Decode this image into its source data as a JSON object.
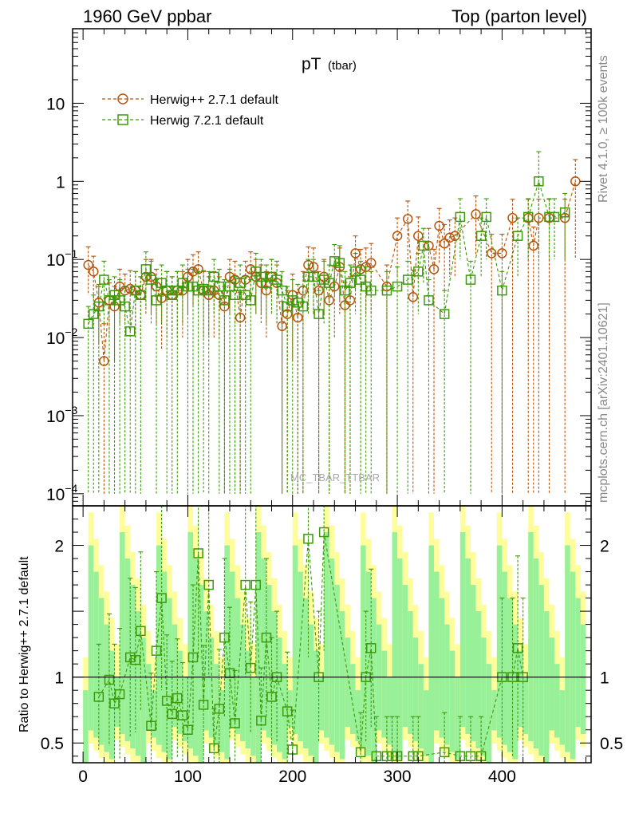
{
  "header": {
    "left": "1960 GeV ppbar",
    "right": "Top (parton level)"
  },
  "side_text": {
    "rivet": "Rivet 4.1.0, ≥ 100k events",
    "mcplots": "mcplots.cern.ch [arXiv:2401.10621]"
  },
  "watermark": "MC_TBAR_TTBAR",
  "colors": {
    "herwig_pp": "#b8530a",
    "herwig_7": "#3c9a0a",
    "band_outer": "#fdfd9c",
    "band_inner": "#98f098"
  },
  "chart_data": [
    {
      "type": "line",
      "title": "pT",
      "title_sub": "(tbar)",
      "yscale": "log",
      "ylim": [
        7e-05,
        90
      ],
      "xlim": [
        -10,
        485
      ],
      "yticks": [
        {
          "value": 0.0001,
          "base": "10",
          "exp": "−4"
        },
        {
          "value": 0.001,
          "base": "10",
          "exp": "−3"
        },
        {
          "value": 0.01,
          "base": "10",
          "exp": "−2"
        },
        {
          "value": 0.1,
          "base": "10",
          "exp": "−1"
        },
        {
          "value": 1,
          "base": "1",
          "exp": ""
        },
        {
          "value": 10,
          "base": "10",
          "exp": ""
        }
      ],
      "legend_position": "top-left",
      "series": [
        {
          "name": "Herwig++ 2.7.1 default",
          "marker": "circle",
          "x": [
            5,
            10,
            15,
            20,
            25,
            30,
            35,
            40,
            45,
            50,
            55,
            60,
            65,
            70,
            75,
            80,
            85,
            90,
            95,
            100,
            105,
            110,
            115,
            120,
            125,
            130,
            135,
            140,
            145,
            150,
            155,
            160,
            165,
            170,
            175,
            180,
            185,
            190,
            195,
            200,
            205,
            210,
            215,
            220,
            225,
            230,
            235,
            240,
            245,
            250,
            255,
            260,
            265,
            270,
            275,
            290,
            300,
            310,
            315,
            320,
            330,
            335,
            340,
            345,
            350,
            355,
            375,
            390,
            400,
            410,
            425,
            430,
            435,
            445,
            460,
            470
          ],
          "y": [
            0.085,
            0.07,
            0.028,
            0.005,
            0.03,
            0.025,
            0.045,
            0.04,
            0.042,
            0.04,
            0.035,
            0.06,
            0.06,
            0.045,
            0.032,
            0.04,
            0.035,
            0.04,
            0.04,
            0.06,
            0.07,
            0.075,
            0.04,
            0.035,
            0.04,
            0.035,
            0.025,
            0.06,
            0.055,
            0.018,
            0.055,
            0.075,
            0.06,
            0.05,
            0.04,
            0.06,
            0.05,
            0.014,
            0.02,
            0.035,
            0.018,
            0.04,
            0.085,
            0.08,
            0.04,
            0.06,
            0.03,
            0.045,
            0.08,
            0.026,
            0.03,
            0.12,
            0.075,
            0.08,
            0.09,
            0.045,
            0.2,
            0.33,
            0.033,
            0.2,
            0.15,
            0.075,
            0.27,
            0.16,
            0.19,
            0.2,
            0.38,
            0.12,
            0.12,
            0.34,
            0.34,
            0.15,
            0.34,
            0.34,
            0.34,
            1.0
          ],
          "err_up": [
            0.06,
            0.04,
            0.02,
            0.01,
            0.02,
            0.02,
            0.03,
            0.025,
            0.03,
            0.03,
            0.025,
            0.04,
            0.04,
            0.03,
            0.025,
            0.03,
            0.025,
            0.03,
            0.03,
            0.04,
            0.045,
            0.05,
            0.03,
            0.025,
            0.03,
            0.025,
            0.02,
            0.04,
            0.04,
            0.02,
            0.04,
            0.05,
            0.04,
            0.035,
            0.03,
            0.04,
            0.035,
            0.015,
            0.02,
            0.03,
            0.02,
            0.03,
            0.06,
            0.06,
            0.03,
            0.04,
            0.03,
            0.035,
            0.06,
            0.025,
            0.03,
            0.08,
            0.06,
            0.06,
            0.07,
            0.04,
            0.14,
            0.23,
            0.04,
            0.15,
            0.1,
            0.06,
            0.18,
            0.12,
            0.13,
            0.14,
            0.27,
            0.09,
            0.09,
            0.25,
            0.25,
            0.11,
            0.25,
            0.25,
            0.25,
            0.9
          ],
          "err_down": [
            0.05,
            0.04,
            0.02,
            0.0049,
            0.02,
            0.02,
            0.03,
            0.025,
            0.03,
            0.03,
            0.025,
            0.04,
            0.04,
            0.03,
            0.025,
            0.03,
            0.025,
            0.03,
            0.03,
            0.04,
            0.045,
            0.05,
            0.03,
            0.025,
            0.03,
            0.025,
            0.0249,
            0.04,
            0.04,
            0.0179,
            0.04,
            0.05,
            0.04,
            0.035,
            0.03,
            0.04,
            0.035,
            0.0139,
            0.0199,
            0.03,
            0.0179,
            0.0399,
            0.06,
            0.06,
            0.0399,
            0.04,
            0.0299,
            0.035,
            0.06,
            0.0259,
            0.0299,
            0.08,
            0.06,
            0.06,
            0.07,
            0.0449,
            0.14,
            0.23,
            0.0329,
            0.15,
            0.1,
            0.0749,
            0.18,
            0.12,
            0.13,
            0.14,
            0.27,
            0.1199,
            0.1199,
            0.3399,
            0.3399,
            0.1499,
            0.3399,
            0.3399,
            0.3399,
            0.9
          ]
        },
        {
          "name": "Herwig 7.2.1 default",
          "marker": "square",
          "x": [
            5,
            10,
            15,
            20,
            25,
            30,
            35,
            40,
            45,
            50,
            55,
            60,
            65,
            70,
            75,
            80,
            85,
            90,
            95,
            100,
            105,
            110,
            115,
            120,
            125,
            130,
            135,
            140,
            145,
            150,
            155,
            160,
            165,
            170,
            175,
            180,
            185,
            190,
            195,
            200,
            205,
            210,
            215,
            220,
            225,
            230,
            235,
            240,
            245,
            250,
            255,
            260,
            265,
            270,
            275,
            290,
            300,
            310,
            320,
            325,
            330,
            345,
            360,
            370,
            380,
            385,
            400,
            415,
            425,
            435,
            445,
            450,
            460
          ],
          "y": [
            0.015,
            0.02,
            0.025,
            0.055,
            0.03,
            0.035,
            0.03,
            0.025,
            0.012,
            0.04,
            0.035,
            0.075,
            0.055,
            0.03,
            0.05,
            0.04,
            0.035,
            0.04,
            0.05,
            0.045,
            0.045,
            0.04,
            0.042,
            0.04,
            0.06,
            0.045,
            0.03,
            0.045,
            0.035,
            0.05,
            0.035,
            0.03,
            0.07,
            0.06,
            0.05,
            0.06,
            0.055,
            0.04,
            0.025,
            0.03,
            0.028,
            0.025,
            0.06,
            0.06,
            0.02,
            0.055,
            0.05,
            0.095,
            0.09,
            0.04,
            0.05,
            0.07,
            0.055,
            0.045,
            0.04,
            0.04,
            0.045,
            0.055,
            0.07,
            0.15,
            0.03,
            0.02,
            0.35,
            0.055,
            0.2,
            0.35,
            0.04,
            0.2,
            0.35,
            1.0,
            0.35,
            0.35,
            0.4
          ],
          "err_up": [
            0.01,
            0.015,
            0.02,
            0.04,
            0.025,
            0.025,
            0.025,
            0.02,
            0.01,
            0.03,
            0.025,
            0.05,
            0.04,
            0.025,
            0.035,
            0.03,
            0.025,
            0.03,
            0.035,
            0.03,
            0.03,
            0.03,
            0.03,
            0.03,
            0.04,
            0.03,
            0.025,
            0.03,
            0.025,
            0.035,
            0.025,
            0.025,
            0.05,
            0.04,
            0.035,
            0.04,
            0.04,
            0.03,
            0.02,
            0.025,
            0.02,
            0.02,
            0.04,
            0.04,
            0.02,
            0.04,
            0.035,
            0.06,
            0.06,
            0.03,
            0.035,
            0.05,
            0.04,
            0.035,
            0.03,
            0.03,
            0.035,
            0.04,
            0.05,
            0.1,
            0.025,
            0.02,
            0.25,
            0.04,
            0.14,
            0.25,
            0.03,
            0.14,
            0.25,
            1.4,
            0.25,
            0.25,
            0.3
          ],
          "err_down": [
            0.0149,
            0.0199,
            0.0249,
            0.04,
            0.0299,
            0.0349,
            0.0299,
            0.0249,
            0.0119,
            0.0399,
            0.0349,
            0.05,
            0.04,
            0.0299,
            0.035,
            0.0399,
            0.0349,
            0.0399,
            0.035,
            0.0449,
            0.0449,
            0.0399,
            0.0419,
            0.0399,
            0.04,
            0.0449,
            0.0299,
            0.0449,
            0.0349,
            0.0499,
            0.0349,
            0.0299,
            0.05,
            0.04,
            0.035,
            0.04,
            0.04,
            0.0399,
            0.0249,
            0.0299,
            0.0279,
            0.0249,
            0.04,
            0.04,
            0.0199,
            0.04,
            0.0499,
            0.06,
            0.06,
            0.0399,
            0.0499,
            0.05,
            0.0549,
            0.0449,
            0.0399,
            0.0399,
            0.0449,
            0.0549,
            0.05,
            0.1,
            0.0299,
            0.0199,
            0.25,
            0.0549,
            0.14,
            0.25,
            0.0399,
            0.14,
            0.25,
            0.9,
            0.25,
            0.25,
            0.3
          ]
        }
      ]
    },
    {
      "type": "line",
      "ylabel": "Ratio to Herwig++ 2.7.1 default",
      "ylim": [
        0.35,
        2.3
      ],
      "xlim": [
        -10,
        485
      ],
      "yticks": [
        {
          "value": 0.5,
          "label": "0.5"
        },
        {
          "value": 1,
          "label": "1"
        },
        {
          "value": 2,
          "label": "2"
        }
      ],
      "xticks": [
        {
          "value": 0,
          "label": "0"
        },
        {
          "value": 100,
          "label": "100"
        },
        {
          "value": 200,
          "label": "200"
        },
        {
          "value": 300,
          "label": "300"
        },
        {
          "value": 400,
          "label": "400"
        }
      ],
      "reference_line": 1,
      "series": [
        {
          "name": "Herwig 7.2.1 default",
          "marker": "square",
          "x": [
            15,
            25,
            30,
            35,
            45,
            50,
            55,
            65,
            70,
            75,
            80,
            85,
            90,
            95,
            100,
            105,
            110,
            115,
            120,
            125,
            130,
            135,
            140,
            145,
            155,
            160,
            165,
            170,
            175,
            180,
            185,
            195,
            200,
            215,
            225,
            230,
            265,
            270,
            275,
            280,
            290,
            295,
            300,
            315,
            320,
            345,
            360,
            370,
            380,
            400,
            410,
            415,
            420
          ],
          "y": [
            0.85,
            0.98,
            0.8,
            0.87,
            1.15,
            1.13,
            1.35,
            0.63,
            1.2,
            1.6,
            0.82,
            0.72,
            0.84,
            0.71,
            0.6,
            1.15,
            1.94,
            0.79,
            1.7,
            0.46,
            0.76,
            1.3,
            1.03,
            0.65,
            1.7,
            1.07,
            1.7,
            0.67,
            1.3,
            0.85,
            1.0,
            0.74,
            0.45,
            2.05,
            1.0,
            2.1,
            0.43,
            1.0,
            1.22,
            0.4,
            0.4,
            0.4,
            0.4,
            0.4,
            0.4,
            0.43,
            0.4,
            0.4,
            0.4,
            1.0,
            1.0,
            1.22,
            1.0
          ],
          "err": [
            0.4,
            0.5,
            0.45,
            0.5,
            0.6,
            0.55,
            0.6,
            0.4,
            0.6,
            0.7,
            0.5,
            0.4,
            0.45,
            0.4,
            0.4,
            0.55,
            0.8,
            0.45,
            0.7,
            0.3,
            0.45,
            0.6,
            0.5,
            0.4,
            0.7,
            0.5,
            0.7,
            0.4,
            0.6,
            0.45,
            0.5,
            0.45,
            0.3,
            0.9,
            0.5,
            0.9,
            0.3,
            0.5,
            0.6,
            0.3,
            0.3,
            0.3,
            0.3,
            0.3,
            0.3,
            0.3,
            0.3,
            0.3,
            0.3,
            0.6,
            0.6,
            0.7,
            0.6
          ]
        }
      ]
    }
  ]
}
